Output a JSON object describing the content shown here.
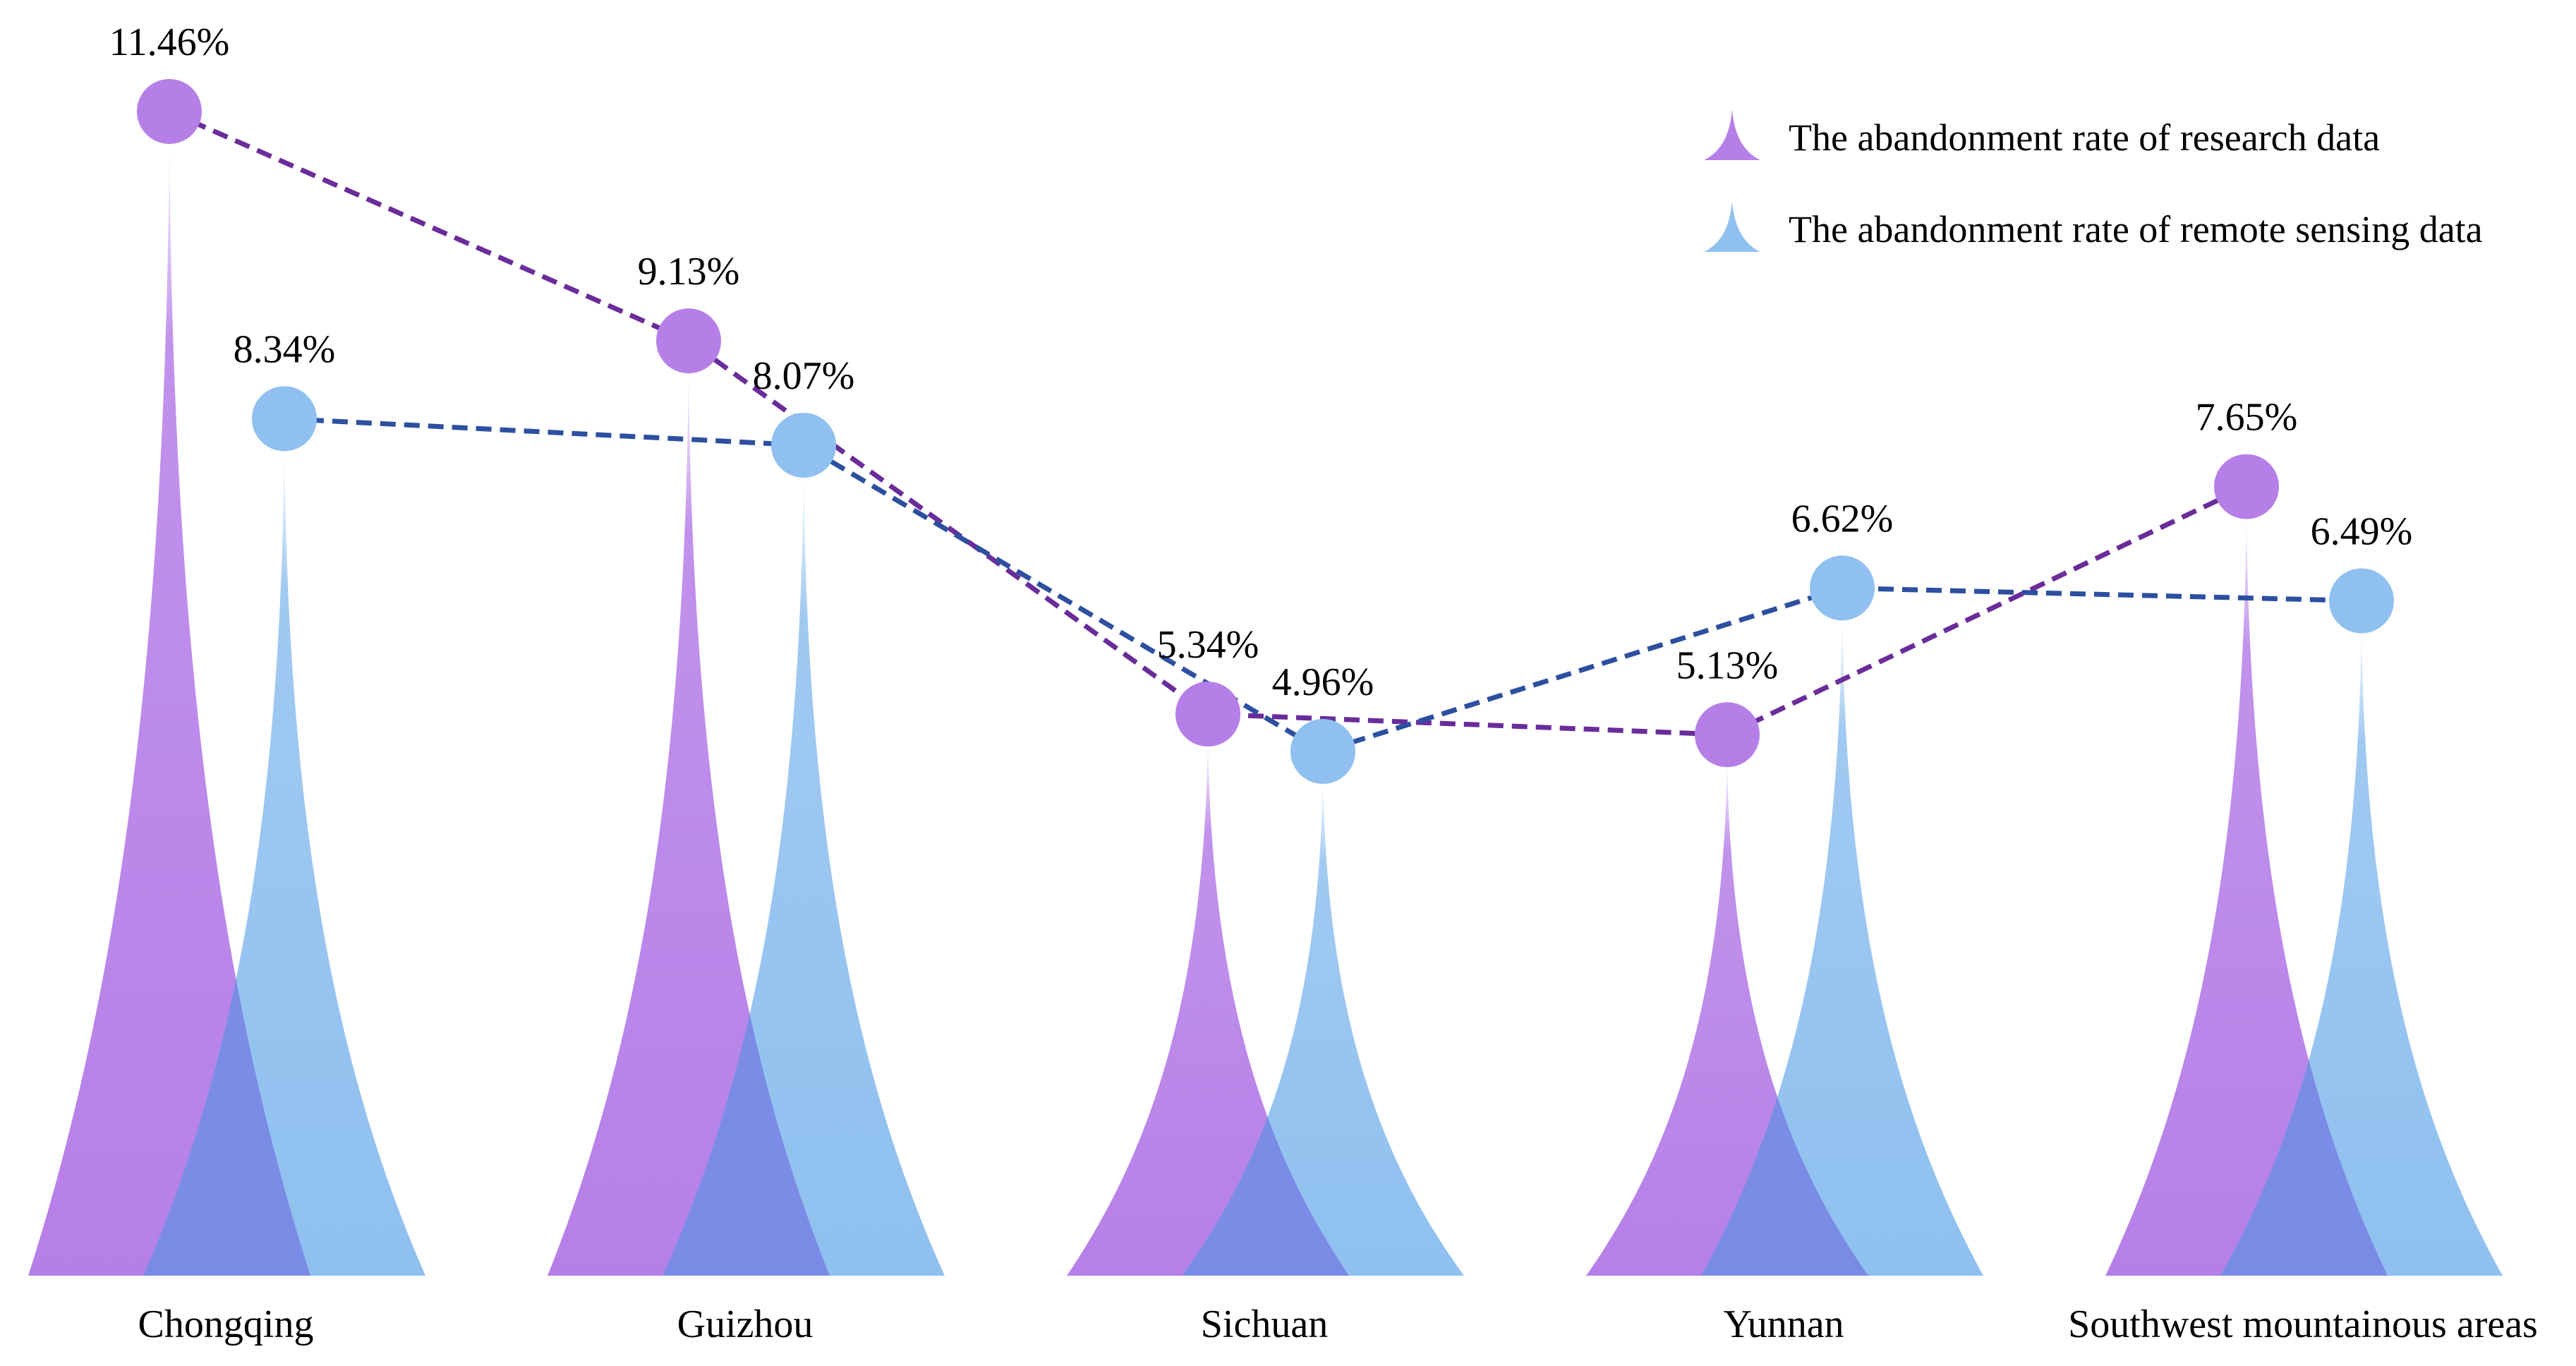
{
  "chart_data": {
    "type": "bar",
    "title": "",
    "xlabel": "",
    "ylabel": "",
    "categories": [
      "Chongqing",
      "Guizhou",
      "Sichuan",
      "Yunnan",
      "Southwest mountainous areas"
    ],
    "series": [
      {
        "name": "The abandonment rate of research data",
        "values": [
          11.46,
          9.13,
          5.34,
          5.13,
          7.65
        ],
        "labels": [
          "11.46%",
          "9.13%",
          "5.34%",
          "5.13%",
          "7.65%"
        ],
        "color": "#b67fe8",
        "line_color": "#6a2c9a"
      },
      {
        "name": "The abandonment rate of remote sensing data",
        "values": [
          8.34,
          8.07,
          4.96,
          6.62,
          6.49
        ],
        "labels": [
          "8.34%",
          "8.07%",
          "4.96%",
          "6.62%",
          "6.49%"
        ],
        "color": "#8fc0ef",
        "line_color": "#2d4fa0"
      }
    ],
    "legend_position": "top-right",
    "ylim": [
      0,
      11.46
    ],
    "grid": false,
    "overlap_color": "#7a8be6"
  }
}
